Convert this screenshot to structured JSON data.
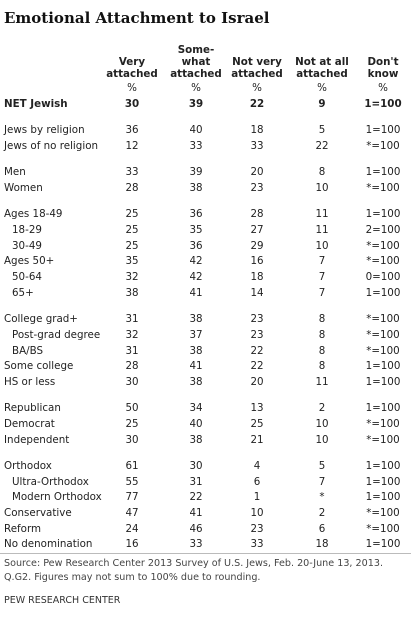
{
  "title": "Emotional Attachment to Israel",
  "table": {
    "headers": [
      [
        "Very",
        "attached"
      ],
      [
        "Some-",
        "what",
        "attached"
      ],
      [
        "Not very",
        "attached"
      ],
      [
        "Not at all",
        "attached"
      ],
      [
        "Don't",
        "know"
      ]
    ],
    "units": [
      "%",
      "%",
      "%",
      "%",
      "%"
    ],
    "groups": [
      [
        {
          "label": "NET Jewish",
          "values": [
            30,
            39,
            22,
            9,
            "1=100"
          ]
        }
      ],
      [
        {
          "label": "Jews by religion",
          "values": [
            36,
            40,
            18,
            5,
            "1=100"
          ]
        },
        {
          "label": "Jews of no religion",
          "values": [
            12,
            33,
            33,
            22,
            "*=100"
          ]
        }
      ],
      [
        {
          "label": "Men",
          "values": [
            33,
            39,
            20,
            8,
            "1=100"
          ]
        },
        {
          "label": "Women",
          "values": [
            28,
            38,
            23,
            10,
            "*=100"
          ]
        }
      ],
      [
        {
          "label": "Ages 18-49",
          "values": [
            25,
            36,
            28,
            11,
            "1=100"
          ],
          "sub": [
            {
              "label": "18-29",
              "values": [
                25,
                35,
                27,
                11,
                "2=100"
              ]
            },
            {
              "label": "30-49",
              "values": [
                25,
                36,
                29,
                10,
                "*=100"
              ]
            }
          ]
        },
        {
          "label": "Ages 50+",
          "values": [
            35,
            42,
            16,
            7,
            "*=100"
          ],
          "sub": [
            {
              "label": "50-64",
              "values": [
                32,
                42,
                18,
                7,
                "0=100"
              ]
            },
            {
              "label": "65+",
              "values": [
                38,
                41,
                14,
                7,
                "1=100"
              ]
            }
          ]
        }
      ],
      [
        {
          "label": "College grad+",
          "values": [
            31,
            38,
            23,
            8,
            "*=100"
          ],
          "sub": [
            {
              "label": "Post-grad degree",
              "values": [
                32,
                37,
                23,
                8,
                "*=100"
              ]
            },
            {
              "label": "BA/BS",
              "values": [
                31,
                38,
                22,
                8,
                "*=100"
              ]
            }
          ]
        },
        {
          "label": "Some college",
          "values": [
            28,
            41,
            22,
            8,
            "1=100"
          ]
        },
        {
          "label": "HS or less",
          "values": [
            30,
            38,
            20,
            11,
            "1=100"
          ]
        }
      ],
      [
        {
          "label": "Republican",
          "values": [
            50,
            34,
            13,
            2,
            "1=100"
          ]
        },
        {
          "label": "Democrat",
          "values": [
            25,
            40,
            25,
            10,
            "*=100"
          ]
        },
        {
          "label": "Independent",
          "values": [
            30,
            38,
            21,
            10,
            "*=100"
          ]
        }
      ],
      [
        {
          "label": "Orthodox",
          "values": [
            61,
            30,
            4,
            5,
            "1=100"
          ],
          "sub": [
            {
              "label": "Ultra-Orthodox",
              "values": [
                55,
                31,
                6,
                7,
                "1=100"
              ]
            },
            {
              "label": "Modern Orthodox",
              "values": [
                77,
                22,
                1,
                "*",
                "1=100"
              ]
            }
          ]
        },
        {
          "label": "Conservative",
          "values": [
            47,
            41,
            10,
            2,
            "*=100"
          ]
        },
        {
          "label": "Reform",
          "values": [
            24,
            46,
            23,
            6,
            "*=100"
          ]
        },
        {
          "label": "No denomination",
          "values": [
            16,
            33,
            33,
            18,
            "1=100"
          ]
        }
      ]
    ]
  },
  "source": "Source: Pew Research Center 2013 Survey of U.S. Jews, Feb. 20-June 13, 2013. Q.G2. Figures may not sum to 100% due to rounding.",
  "footer": "PEW RESEARCH CENTER"
}
